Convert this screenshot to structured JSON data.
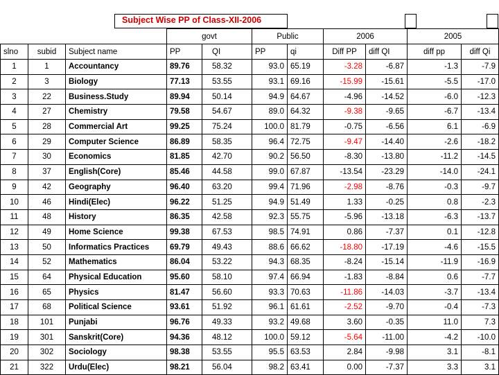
{
  "title": "Subject Wise PP of Class-XII-2006",
  "groups": {
    "govt": "govt",
    "public": "Public",
    "y2006": "2006",
    "y2005": "2005"
  },
  "columns": [
    "slno",
    "subid",
    "Subject name",
    "PP",
    "QI",
    "PP",
    "qi",
    "Diff PP",
    "diff QI",
    "diff pp",
    "diff Qi"
  ],
  "rows": [
    {
      "slno": "1",
      "subid": "1",
      "name": "Accountancy",
      "gpp": "89.76",
      "gqi": "58.32",
      "ppp": "93.0",
      "pqi": "65.19",
      "dpp": "-3.28",
      "dqi": "-6.87",
      "d5pp": "-1.3",
      "d5qi": "-7.9",
      "neg": true
    },
    {
      "slno": "2",
      "subid": "3",
      "name": "Biology",
      "gpp": "77.13",
      "gqi": "53.55",
      "ppp": "93.1",
      "pqi": "69.16",
      "dpp": "-15.99",
      "dqi": "-15.61",
      "d5pp": "-5.5",
      "d5qi": "-17.0",
      "neg": true
    },
    {
      "slno": "3",
      "subid": "22",
      "name": "Business.Study",
      "gpp": "89.94",
      "gqi": "50.14",
      "ppp": "94.9",
      "pqi": "64.67",
      "dpp": "-4.96",
      "dqi": "-14.52",
      "d5pp": "-6.0",
      "d5qi": "-12.3",
      "neg": false
    },
    {
      "slno": "4",
      "subid": "27",
      "name": "Chemistry",
      "gpp": "79.58",
      "gqi": "54.67",
      "ppp": "89.0",
      "pqi": "64.32",
      "dpp": "-9.38",
      "dqi": "-9.65",
      "d5pp": "-6.7",
      "d5qi": "-13.4",
      "neg": true
    },
    {
      "slno": "5",
      "subid": "28",
      "name": "Commercial Art",
      "gpp": "99.25",
      "gqi": "75.24",
      "ppp": "100.0",
      "pqi": "81.79",
      "dpp": "-0.75",
      "dqi": "-6.56",
      "d5pp": "6.1",
      "d5qi": "-6.9",
      "neg": false
    },
    {
      "slno": "6",
      "subid": "29",
      "name": "Computer Science",
      "gpp": "86.89",
      "gqi": "58.35",
      "ppp": "96.4",
      "pqi": "72.75",
      "dpp": "-9.47",
      "dqi": "-14.40",
      "d5pp": "-2.6",
      "d5qi": "-18.2",
      "neg": true
    },
    {
      "slno": "7",
      "subid": "30",
      "name": "Economics",
      "gpp": "81.85",
      "gqi": "42.70",
      "ppp": "90.2",
      "pqi": "56.50",
      "dpp": "-8.30",
      "dqi": "-13.80",
      "d5pp": "-11.2",
      "d5qi": "-14.5",
      "neg": false
    },
    {
      "slno": "8",
      "subid": "37",
      "name": "English(Core)",
      "gpp": "85.46",
      "gqi": "44.58",
      "ppp": "99.0",
      "pqi": "67.87",
      "dpp": "-13.54",
      "dqi": "-23.29",
      "d5pp": "-14.0",
      "d5qi": "-24.1",
      "neg": false
    },
    {
      "slno": "9",
      "subid": "42",
      "name": "Geography",
      "gpp": "96.40",
      "gqi": "63.20",
      "ppp": "99.4",
      "pqi": "71.96",
      "dpp": "-2.98",
      "dqi": "-8.76",
      "d5pp": "-0.3",
      "d5qi": "-9.7",
      "neg": true
    },
    {
      "slno": "10",
      "subid": "46",
      "name": "Hindi(Elec)",
      "gpp": "96.22",
      "gqi": "51.25",
      "ppp": "94.9",
      "pqi": "51.49",
      "dpp": "1.33",
      "dqi": "-0.25",
      "d5pp": "0.8",
      "d5qi": "-2.3",
      "neg": false
    },
    {
      "slno": "11",
      "subid": "48",
      "name": "History",
      "gpp": "86.35",
      "gqi": "42.58",
      "ppp": "92.3",
      "pqi": "55.75",
      "dpp": "-5.96",
      "dqi": "-13.18",
      "d5pp": "-6.3",
      "d5qi": "-13.7",
      "neg": false
    },
    {
      "slno": "12",
      "subid": "49",
      "name": "Home Science",
      "gpp": "99.38",
      "gqi": "67.53",
      "ppp": "98.5",
      "pqi": "74.91",
      "dpp": "0.86",
      "dqi": "-7.37",
      "d5pp": "0.1",
      "d5qi": "-12.8",
      "neg": false
    },
    {
      "slno": "13",
      "subid": "50",
      "name": "Informatics Practices",
      "gpp": "69.79",
      "gqi": "49.43",
      "ppp": "88.6",
      "pqi": "66.62",
      "dpp": "-18.80",
      "dqi": "-17.19",
      "d5pp": "-4.6",
      "d5qi": "-15.5",
      "neg": true
    },
    {
      "slno": "14",
      "subid": "52",
      "name": "Mathematics",
      "gpp": "86.04",
      "gqi": "53.22",
      "ppp": "94.3",
      "pqi": "68.35",
      "dpp": "-8.24",
      "dqi": "-15.14",
      "d5pp": "-11.9",
      "d5qi": "-16.9",
      "neg": false
    },
    {
      "slno": "15",
      "subid": "64",
      "name": "Physical Education",
      "gpp": "95.60",
      "gqi": "58.10",
      "ppp": "97.4",
      "pqi": "66.94",
      "dpp": "-1.83",
      "dqi": "-8.84",
      "d5pp": "0.6",
      "d5qi": "-7.7",
      "neg": false
    },
    {
      "slno": "16",
      "subid": "65",
      "name": "Physics",
      "gpp": "81.47",
      "gqi": "56.60",
      "ppp": "93.3",
      "pqi": "70.63",
      "dpp": "-11.86",
      "dqi": "-14.03",
      "d5pp": "-3.7",
      "d5qi": "-13.4",
      "neg": true
    },
    {
      "slno": "17",
      "subid": "68",
      "name": "Political Science",
      "gpp": "93.61",
      "gqi": "51.92",
      "ppp": "96.1",
      "pqi": "61.61",
      "dpp": "-2.52",
      "dqi": "-9.70",
      "d5pp": "-0.4",
      "d5qi": "-7.3",
      "neg": true
    },
    {
      "slno": "18",
      "subid": "101",
      "name": "Punjabi",
      "gpp": "96.76",
      "gqi": "49.33",
      "ppp": "93.2",
      "pqi": "49.68",
      "dpp": "3.60",
      "dqi": "-0.35",
      "d5pp": "11.0",
      "d5qi": "7.3",
      "neg": false
    },
    {
      "slno": "19",
      "subid": "301",
      "name": "Sanskrit(Core)",
      "gpp": "94.36",
      "gqi": "48.12",
      "ppp": "100.0",
      "pqi": "59.12",
      "dpp": "-5.64",
      "dqi": "-11.00",
      "d5pp": "-4.2",
      "d5qi": "-10.0",
      "neg": true
    },
    {
      "slno": "20",
      "subid": "302",
      "name": "Sociology",
      "gpp": "98.38",
      "gqi": "53.55",
      "ppp": "95.5",
      "pqi": "63.53",
      "dpp": "2.84",
      "dqi": "-9.98",
      "d5pp": "3.1",
      "d5qi": "-8.1",
      "neg": false
    },
    {
      "slno": "21",
      "subid": "322",
      "name": "Urdu(Elec)",
      "gpp": "98.21",
      "gqi": "56.04",
      "ppp": "98.2",
      "pqi": "63.41",
      "dpp": "0.00",
      "dqi": "-7.37",
      "d5pp": "3.3",
      "d5qi": "3.1",
      "neg": false
    }
  ],
  "colors": {
    "title": "#cc0000",
    "negative_diff": "#ff0000"
  }
}
